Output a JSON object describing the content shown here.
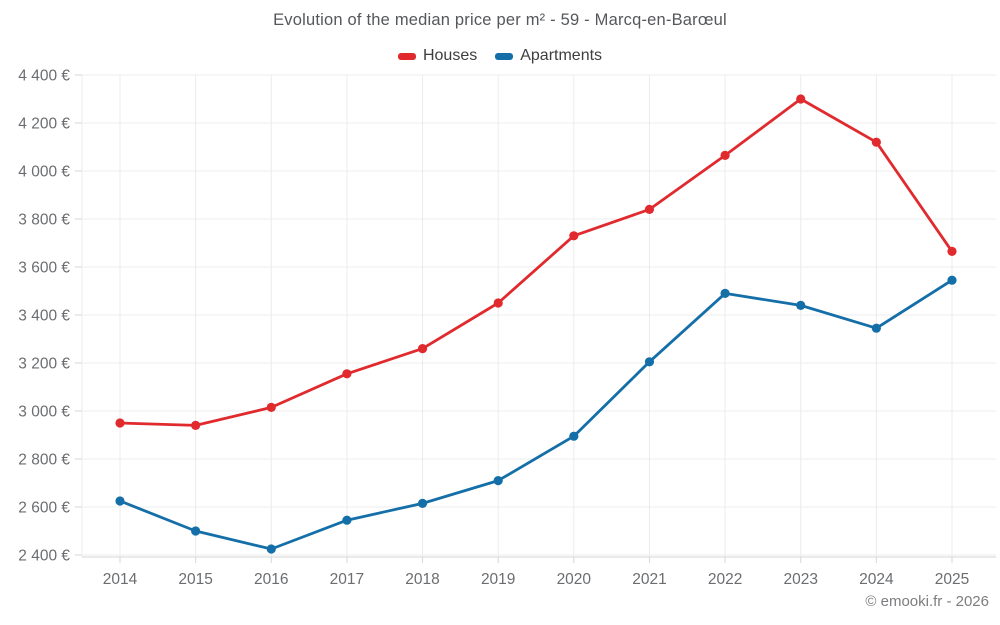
{
  "chart_data": {
    "type": "line",
    "title": "Evolution of the median price per m² - 59 - Marcq-en-Barœul",
    "categories": [
      "2014",
      "2015",
      "2016",
      "2017",
      "2018",
      "2019",
      "2020",
      "2021",
      "2022",
      "2023",
      "2024",
      "2025"
    ],
    "series": [
      {
        "name": "Houses",
        "color": "#e02a2e",
        "values": [
          2950,
          2940,
          3015,
          3155,
          3260,
          3450,
          3730,
          3840,
          4065,
          4300,
          4120,
          3665
        ]
      },
      {
        "name": "Apartments",
        "color": "#146fa8",
        "values": [
          2625,
          2500,
          2425,
          2545,
          2615,
          2710,
          2895,
          3205,
          3490,
          3440,
          3345,
          3545
        ]
      }
    ],
    "ylim": [
      2400,
      4400
    ],
    "y_ticks": [
      2400,
      2600,
      2800,
      3000,
      3200,
      3400,
      3600,
      3800,
      4000,
      4200,
      4400
    ],
    "y_tick_labels": [
      "2 400 €",
      "2 600 €",
      "2 800 €",
      "3 000 €",
      "3 200 €",
      "3 400 €",
      "3 600 €",
      "3 800 €",
      "4 000 €",
      "4 200 €",
      "4 400 €"
    ],
    "grid": true,
    "legend_position": "top"
  },
  "footer": {
    "copyright": "© emooki.fr - 2026"
  },
  "colors": {
    "grid": "#ececec",
    "axis": "#d6d6d6",
    "axis_text": "#6b6d70",
    "background": "#ffffff"
  }
}
